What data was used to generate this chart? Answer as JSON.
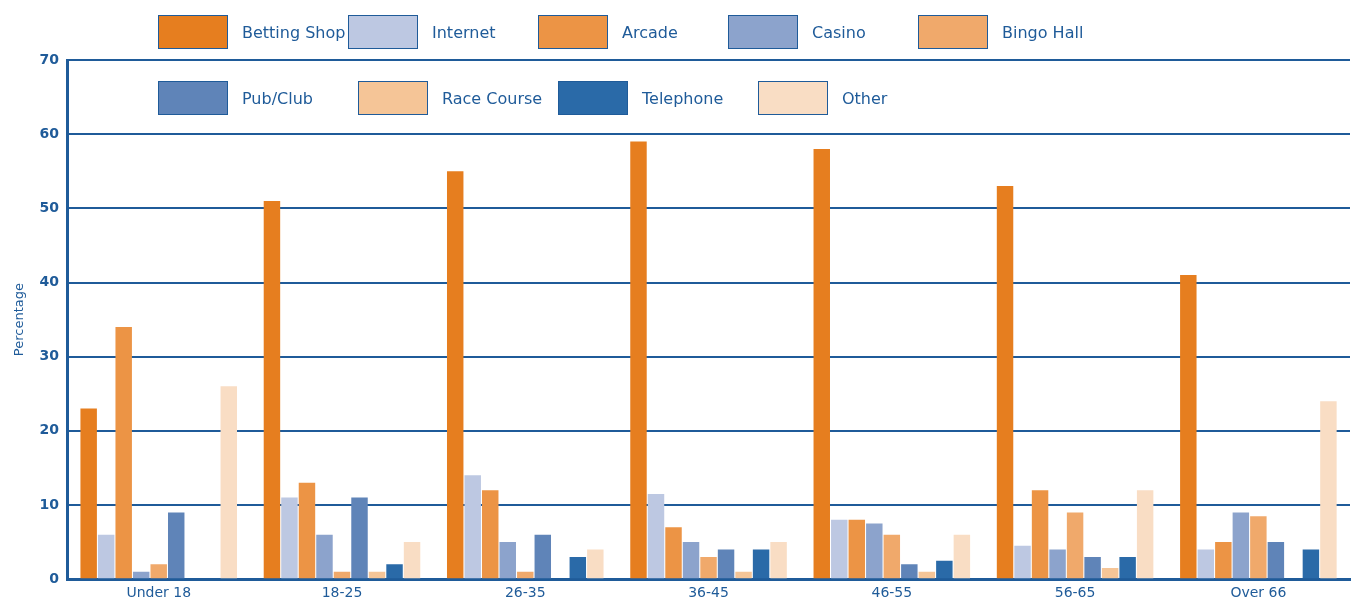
{
  "chart_data": {
    "type": "bar",
    "ylabel": "Percentage",
    "categories": [
      "Under 18",
      "18-25",
      "26-35",
      "36-45",
      "46-55",
      "56-65",
      "Over 66"
    ],
    "series": [
      {
        "name": "Betting Shop",
        "color": "#e67e1f",
        "values": [
          23,
          51,
          55,
          59,
          58,
          53,
          41
        ]
      },
      {
        "name": "Internet",
        "color": "#bdc8e2",
        "values": [
          6,
          11,
          14,
          11.5,
          8,
          4.5,
          4
        ]
      },
      {
        "name": "Arcade",
        "color": "#ec9445",
        "values": [
          34,
          13,
          12,
          7,
          8,
          12,
          5
        ]
      },
      {
        "name": "Casino",
        "color": "#8ca3cc",
        "values": [
          1,
          6,
          5,
          5,
          7.5,
          4,
          9
        ]
      },
      {
        "name": "Bingo Hall",
        "color": "#f0a96b",
        "values": [
          2,
          1,
          1,
          3,
          6,
          9,
          8.5
        ]
      },
      {
        "name": "Pub/Club",
        "color": "#5f84b8",
        "values": [
          9,
          11,
          6,
          4,
          2,
          3,
          5
        ]
      },
      {
        "name": "Race Course",
        "color": "#f5c597",
        "values": [
          null,
          1,
          null,
          1,
          1,
          1.5,
          null
        ]
      },
      {
        "name": "Telephone",
        "color": "#2a6aa8",
        "values": [
          null,
          2,
          3,
          4,
          2.5,
          3,
          4
        ]
      },
      {
        "name": "Other",
        "color": "#f9ddc4",
        "values": [
          26,
          5,
          4,
          5,
          6,
          12,
          24
        ]
      }
    ],
    "ylim": [
      0,
      70
    ],
    "yticks": [
      0,
      10,
      20,
      30,
      40,
      50,
      60,
      70
    ],
    "grid": "y",
    "legend": "top"
  }
}
